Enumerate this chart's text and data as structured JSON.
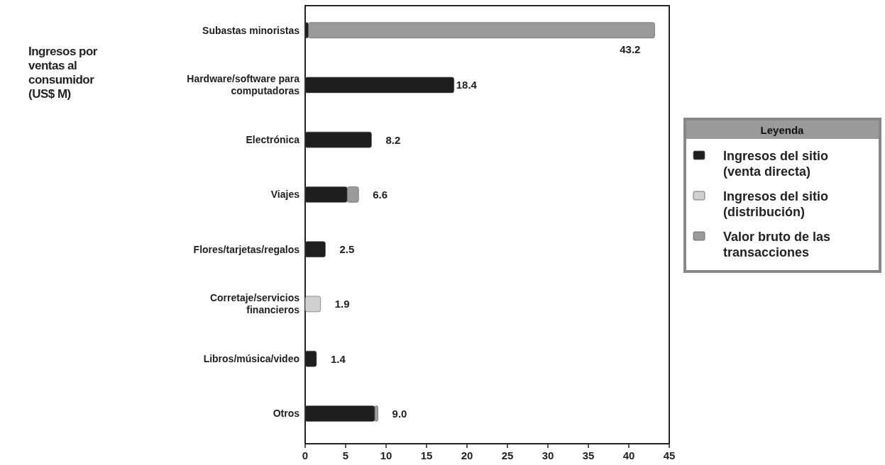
{
  "chart_data": {
    "type": "bar",
    "orientation": "horizontal",
    "stacked": true,
    "title": "Ingresos por ventas al consumidor (US$ M)",
    "legend_title": "Leyenda",
    "legend": "right",
    "categories": [
      "Subastas minoristas",
      "Hardware/software para computadoras",
      "Electrónica",
      "Viajes",
      "Flores/tarjetas/regalos",
      "Corretaje/servicios financieros",
      "Libros/música/video",
      "Otros"
    ],
    "series": [
      {
        "name": "Ingresos del sitio (venta directa)",
        "color": "#1e1e1e",
        "values": [
          0.4,
          18.4,
          8.2,
          5.2,
          2.5,
          null,
          1.4,
          8.6
        ]
      },
      {
        "name": "Ingresos del sitio (distribución)",
        "color": "#d0d0d0",
        "values": [
          null,
          null,
          null,
          null,
          null,
          1.9,
          null,
          null
        ]
      },
      {
        "name": "Valor bruto de las transacciones",
        "color": "#9a9a9a",
        "values": [
          42.8,
          null,
          null,
          1.4,
          null,
          null,
          null,
          0.4
        ]
      }
    ],
    "totals": [
      "43.2",
      "18.4",
      "8.2",
      "6.6",
      "2.5",
      "1.9",
      "1.4",
      "9.0"
    ],
    "xlim": [
      0,
      45
    ],
    "xticks": [
      0,
      5,
      10,
      15,
      20,
      25,
      30,
      35,
      40,
      45
    ],
    "grid": false
  }
}
